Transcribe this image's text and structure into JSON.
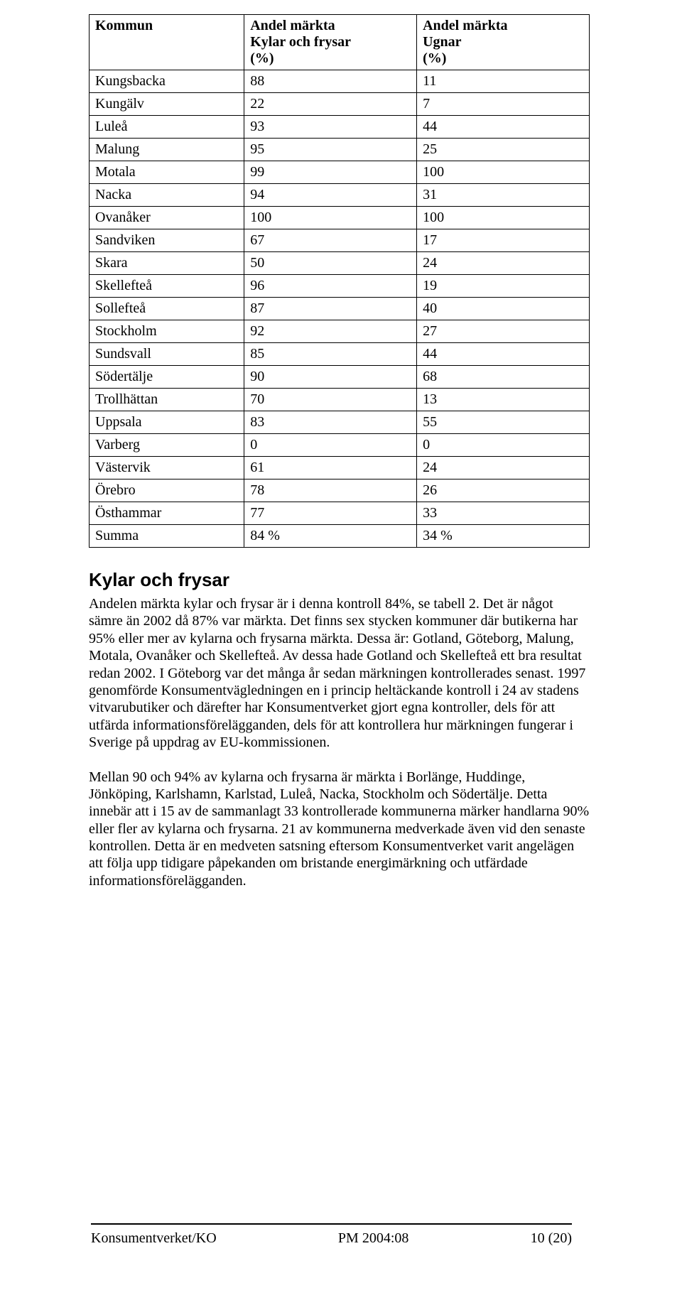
{
  "table": {
    "headers": {
      "kommun": "Kommun",
      "col1_l1": "Andel märkta",
      "col1_l2": "Kylar och frysar",
      "col1_l3": "(%)",
      "col2_l1": "Andel märkta",
      "col2_l2": "Ugnar",
      "col2_l3": "(%)"
    },
    "rows": [
      {
        "k": "Kungsbacka",
        "v1": "88",
        "v2": "11"
      },
      {
        "k": "Kungälv",
        "v1": "22",
        "v2": "7"
      },
      {
        "k": "Luleå",
        "v1": "93",
        "v2": "44"
      },
      {
        "k": "Malung",
        "v1": "95",
        "v2": "25"
      },
      {
        "k": "Motala",
        "v1": "99",
        "v2": "100"
      },
      {
        "k": "Nacka",
        "v1": "94",
        "v2": "31"
      },
      {
        "k": "Ovanåker",
        "v1": "100",
        "v2": "100"
      },
      {
        "k": "Sandviken",
        "v1": "67",
        "v2": "17"
      },
      {
        "k": "Skara",
        "v1": "50",
        "v2": "24"
      },
      {
        "k": "Skellefteå",
        "v1": "96",
        "v2": "19"
      },
      {
        "k": "Sollefteå",
        "v1": "87",
        "v2": "40"
      },
      {
        "k": "Stockholm",
        "v1": "92",
        "v2": "27"
      },
      {
        "k": "Sundsvall",
        "v1": "85",
        "v2": "44"
      },
      {
        "k": "Södertälje",
        "v1": "90",
        "v2": "68"
      },
      {
        "k": "Trollhättan",
        "v1": "70",
        "v2": "13"
      },
      {
        "k": "Uppsala",
        "v1": "83",
        "v2": "55"
      },
      {
        "k": "Varberg",
        "v1": "0",
        "v2": "0"
      },
      {
        "k": "Västervik",
        "v1": "61",
        "v2": "24"
      },
      {
        "k": "Örebro",
        "v1": "78",
        "v2": "26"
      },
      {
        "k": "Östhammar",
        "v1": "77",
        "v2": "33"
      },
      {
        "k": "Summa",
        "v1": "84 %",
        "v2": "34 %"
      }
    ]
  },
  "heading": "Kylar och frysar",
  "paragraphs": [
    "Andelen märkta kylar och frysar är i denna kontroll 84%, se tabell 2. Det är något sämre än 2002 då 87% var märkta. Det finns sex stycken kommuner där butikerna har 95% eller mer av kylarna och frysarna märkta. Dessa är: Gotland, Göteborg, Malung, Motala, Ovanåker och Skellefteå. Av dessa hade Gotland och Skellefteå ett bra resultat redan 2002. I Göteborg var det många år sedan märkningen kontrollerades senast. 1997 genomförde Konsumentvägledningen en i princip heltäckande kontroll i 24 av stadens vitvarubutiker och därefter har Konsumentverket gjort egna kontroller, dels för att utfärda informationsförelägganden, dels för att kontrollera hur märkningen fungerar i Sverige på uppdrag av EU-kommissionen.",
    "Mellan 90 och 94% av kylarna och frysarna är märkta i Borlänge, Huddinge, Jönköping, Karlshamn, Karlstad, Luleå, Nacka, Stockholm och Södertälje. Detta innebär att i 15 av de sammanlagt 33 kontrollerade kommunerna märker handlarna 90% eller fler av kylarna och frysarna. 21 av kommunerna medverkade även vid den senaste kontrollen. Detta är en medveten satsning eftersom Konsumentverket varit angelägen att följa upp tidigare påpekanden om bristande energimärkning och utfärdade informationsförelägganden."
  ],
  "footer": {
    "left": "Konsumentverket/KO",
    "center": "PM 2004:08",
    "right": "10 (20)"
  }
}
